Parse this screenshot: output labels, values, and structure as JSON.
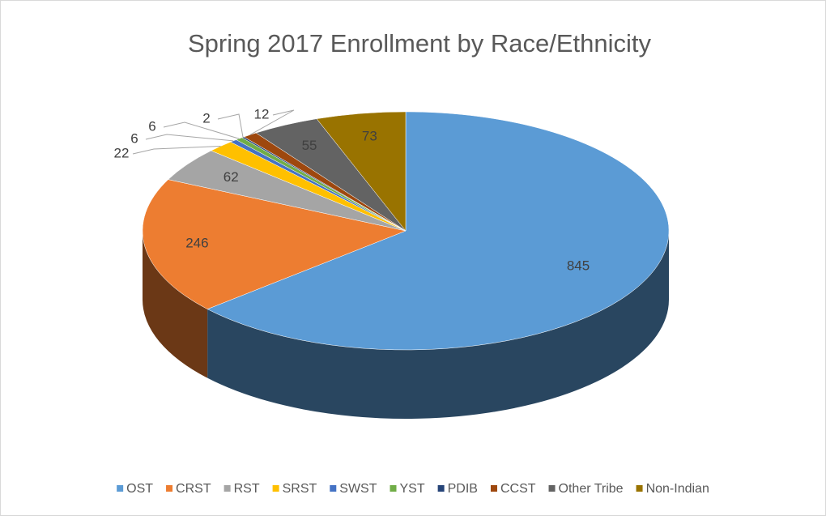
{
  "chart_data": {
    "type": "pie3d",
    "title": "Spring 2017 Enrollment by Race/Ethnicity",
    "categories": [
      "OST",
      "CRST",
      "RST",
      "SRST",
      "SWST",
      "YST",
      "PDIB",
      "CCST",
      "Other Tribe",
      "Non-Indian"
    ],
    "values": [
      845,
      246,
      62,
      22,
      6,
      6,
      2,
      12,
      55,
      73
    ],
    "colors": [
      "#5b9bd5",
      "#ed7d31",
      "#a5a5a5",
      "#ffc000",
      "#4472c4",
      "#70ad47",
      "#264478",
      "#9e480e",
      "#636363",
      "#997300"
    ],
    "legend": "bottom"
  }
}
